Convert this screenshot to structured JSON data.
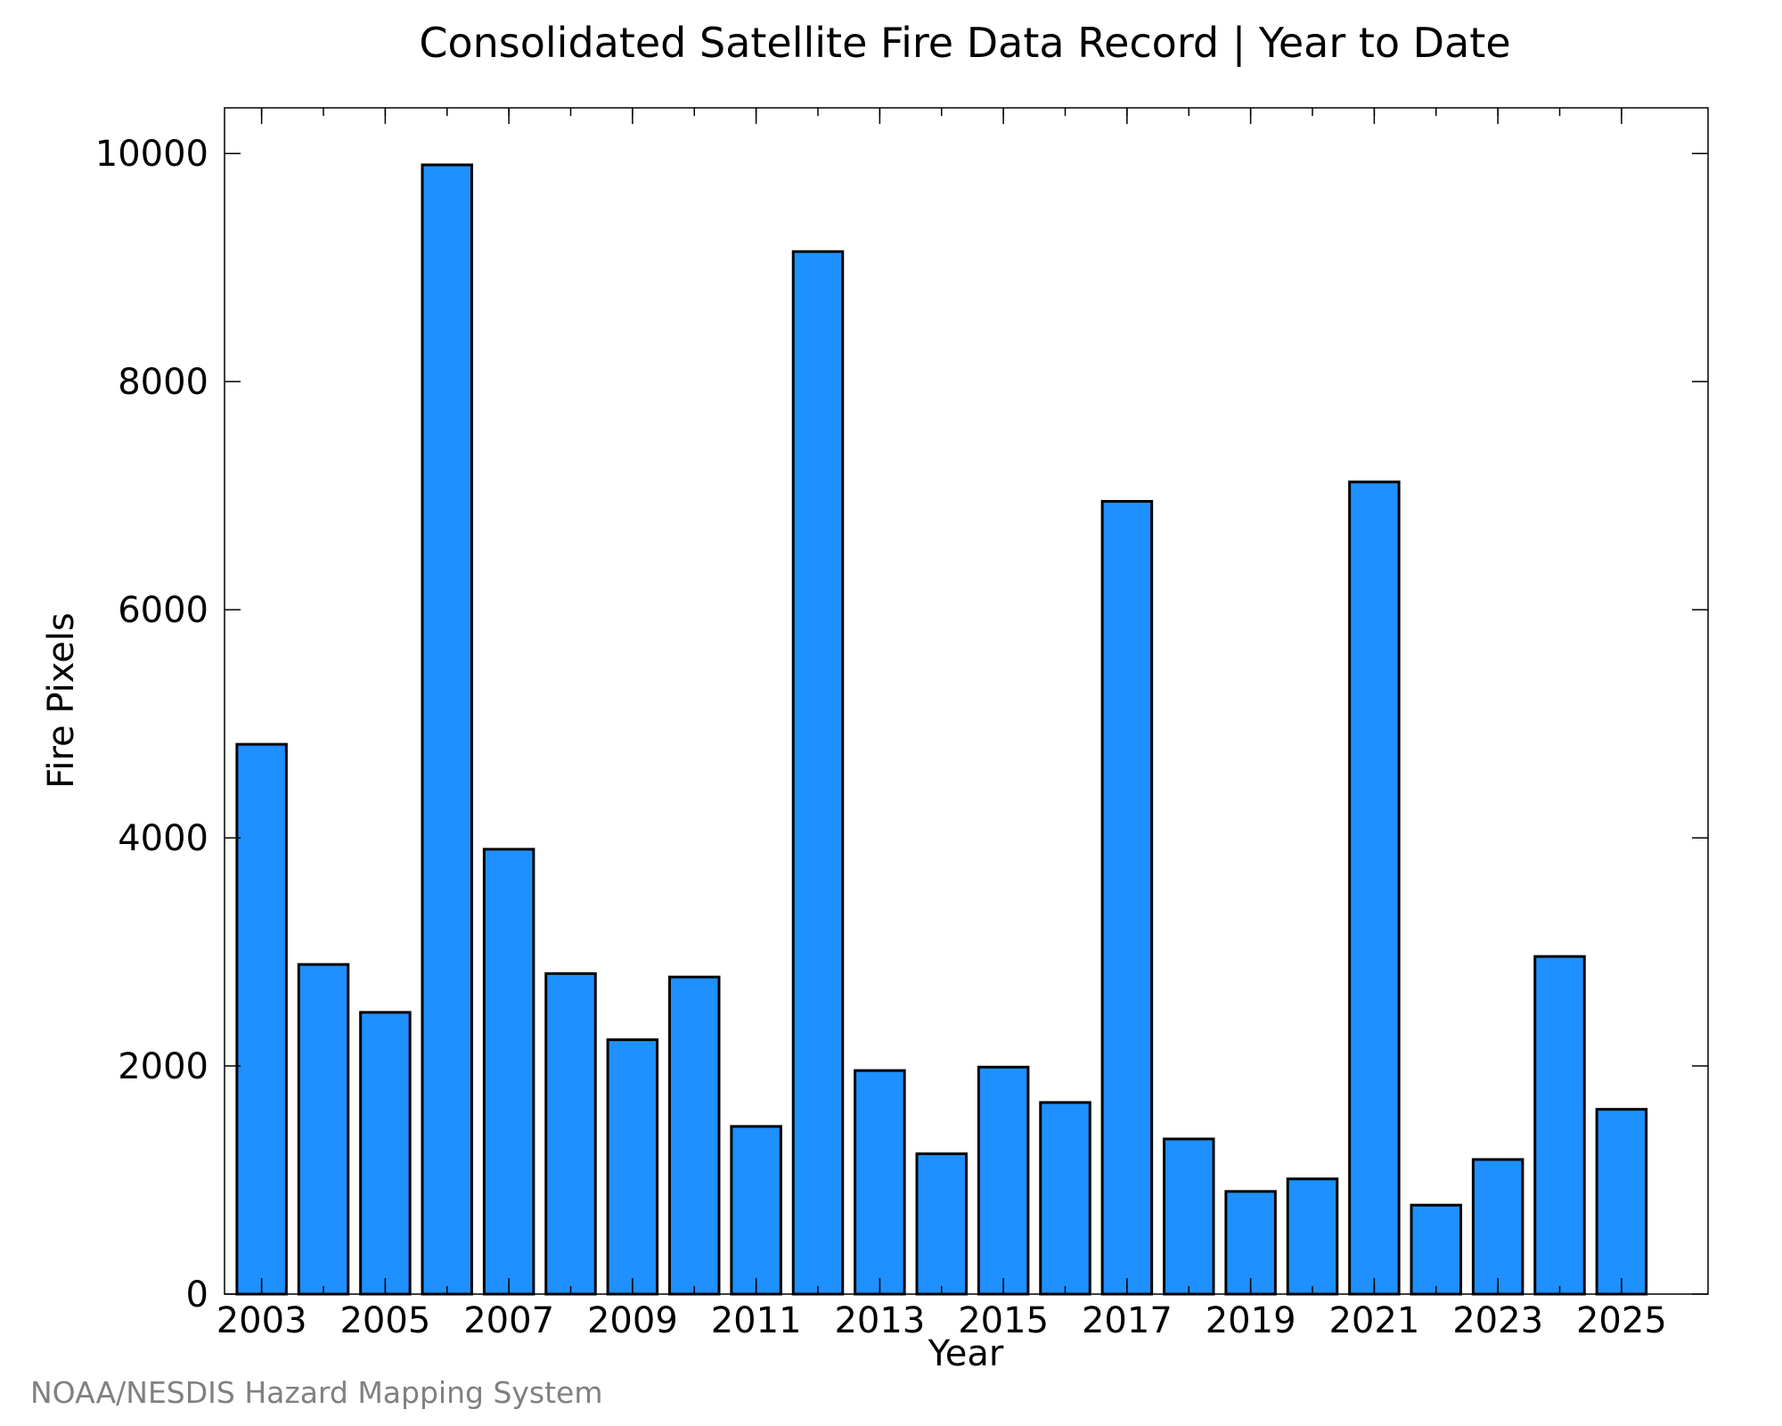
{
  "chart_data": {
    "type": "bar",
    "title": "Consolidated Satellite Fire Data Record | Year to Date",
    "xlabel": "Year",
    "ylabel": "Fire Pixels",
    "categories": [
      "2003",
      "2004",
      "2005",
      "2006",
      "2007",
      "2008",
      "2009",
      "2010",
      "2011",
      "2012",
      "2013",
      "2014",
      "2015",
      "2016",
      "2017",
      "2018",
      "2019",
      "2020",
      "2021",
      "2022",
      "2023",
      "2024",
      "2025"
    ],
    "values": [
      4820,
      2890,
      2470,
      9900,
      3900,
      2810,
      2230,
      2780,
      1470,
      9140,
      1960,
      1230,
      1990,
      1680,
      6950,
      1360,
      900,
      1010,
      7120,
      780,
      1180,
      2960,
      1620
    ],
    "xlim": [
      2002.4,
      2026.4
    ],
    "ylim": [
      0,
      10400
    ],
    "yticks": [
      0,
      2000,
      4000,
      6000,
      8000,
      10000
    ],
    "xticks": [
      2003,
      2005,
      2007,
      2009,
      2011,
      2013,
      2015,
      2017,
      2019,
      2021,
      2023,
      2025
    ],
    "grid": false,
    "bar_color": "#1e90ff",
    "edge_color": "#000000"
  },
  "credit": "NOAA/NESDIS Hazard Mapping System"
}
